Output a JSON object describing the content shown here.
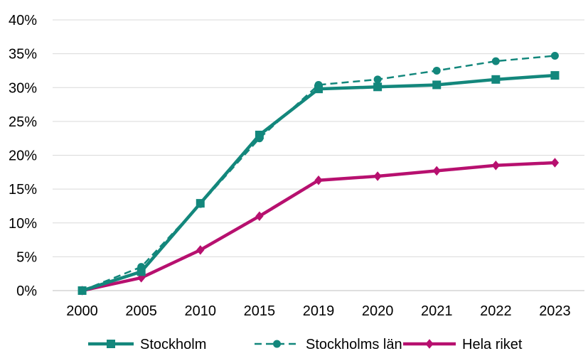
{
  "chart_data": {
    "type": "line",
    "title": "",
    "xlabel": "",
    "ylabel": "",
    "categories": [
      "2000",
      "2005",
      "2010",
      "2015",
      "2019",
      "2020",
      "2021",
      "2022",
      "2023"
    ],
    "ylim": [
      0,
      40
    ],
    "yticks": [
      0,
      5,
      10,
      15,
      20,
      25,
      30,
      35,
      40
    ],
    "ytick_labels": [
      "0%",
      "5%",
      "10%",
      "15%",
      "20%",
      "25%",
      "30%",
      "35%",
      "40%"
    ],
    "grid": true,
    "legend_position": "bottom",
    "series": [
      {
        "name": "Stockholm",
        "color": "#13877c",
        "style": "solid",
        "marker": "square",
        "values": [
          0,
          2.8,
          12.9,
          23.0,
          29.8,
          30.1,
          30.4,
          31.2,
          31.8
        ]
      },
      {
        "name": "Stockholms län",
        "color": "#13877c",
        "style": "dashed",
        "marker": "circle",
        "values": [
          0,
          3.5,
          12.8,
          22.5,
          30.4,
          31.2,
          32.5,
          33.9,
          34.7
        ]
      },
      {
        "name": "Hela riket",
        "color": "#b7106f",
        "style": "solid",
        "marker": "diamond",
        "values": [
          0,
          1.9,
          6.0,
          11.0,
          16.3,
          16.9,
          17.7,
          18.5,
          18.9
        ]
      }
    ]
  }
}
